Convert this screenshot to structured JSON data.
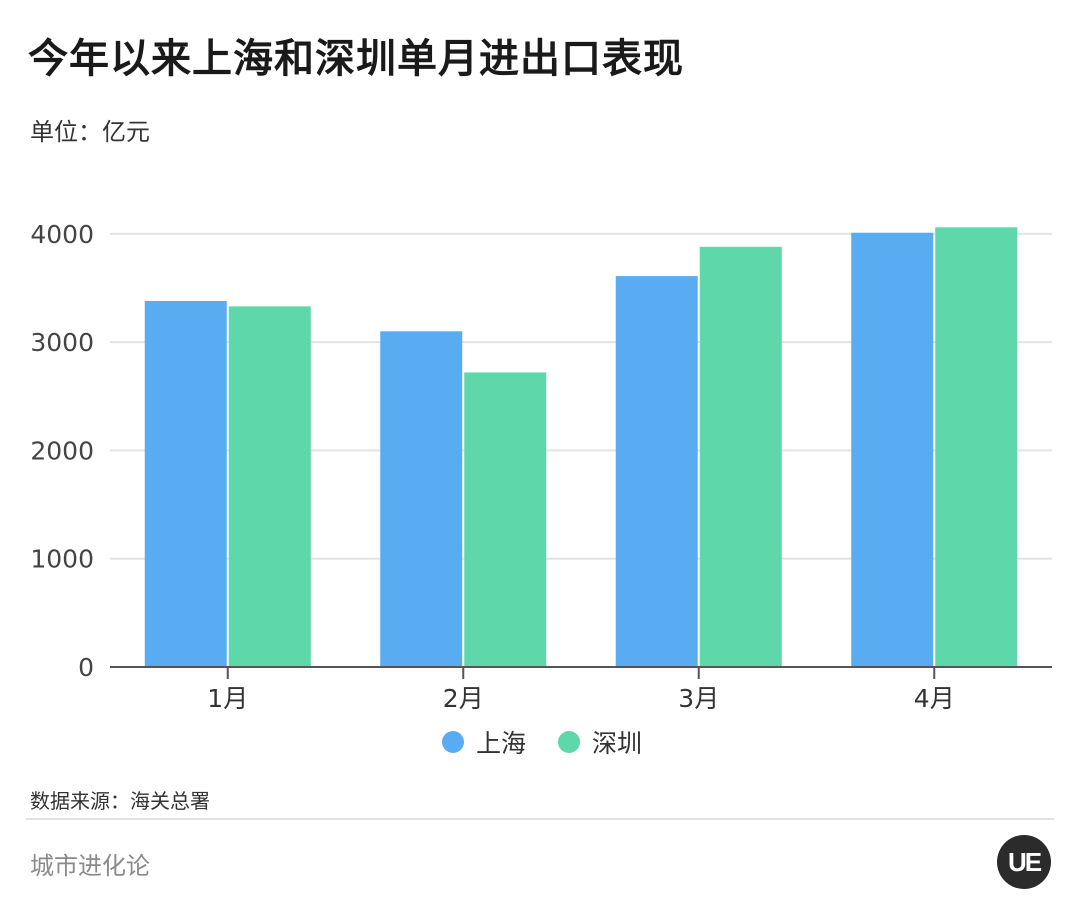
{
  "header": {
    "title": "今年以来上海和深圳单月进出口表现",
    "unit": "单位：亿元"
  },
  "chart_data": {
    "type": "bar",
    "categories": [
      "1月",
      "2月",
      "3月",
      "4月"
    ],
    "series": [
      {
        "name": "上海",
        "color": "#5aacf2",
        "values": [
          3380,
          3100,
          3610,
          4010
        ]
      },
      {
        "name": "深圳",
        "color": "#5ed7aa",
        "values": [
          3330,
          2720,
          3880,
          4060
        ]
      }
    ],
    "yticks": [
      0,
      1000,
      2000,
      3000,
      4000
    ],
    "ylim": [
      0,
      4220
    ],
    "grid": true,
    "legend_position": "bottom-center"
  },
  "footer": {
    "source": "数据来源：海关总署",
    "brand": "城市进化论",
    "logo_text": "UE"
  }
}
